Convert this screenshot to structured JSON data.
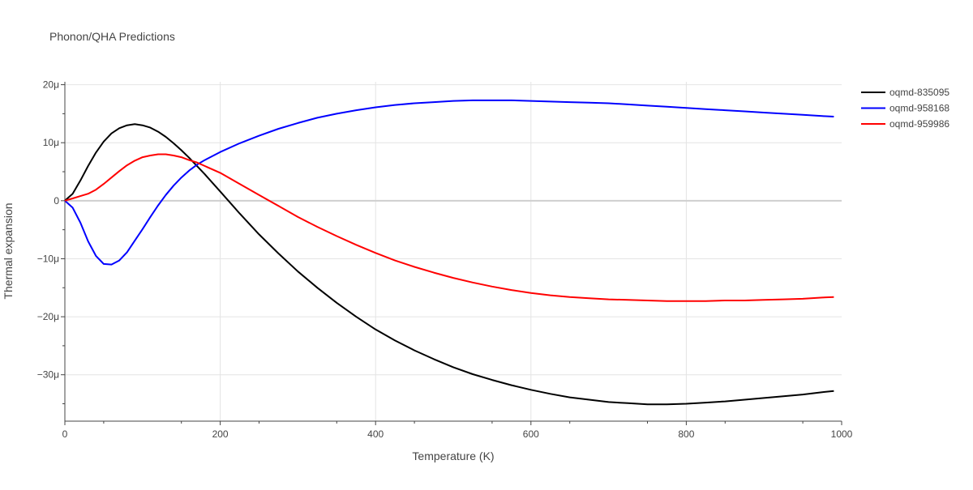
{
  "chart_data": {
    "type": "line",
    "title": "Phonon/QHA Predictions",
    "xlabel": "Temperature (K)",
    "ylabel": "Thermal expansion",
    "xlim": [
      0,
      1000
    ],
    "ylim": [
      -38,
      20.5
    ],
    "x_ticks": [
      0,
      200,
      400,
      600,
      800,
      1000
    ],
    "x_tick_labels": [
      "0",
      "200",
      "400",
      "600",
      "800",
      "1000"
    ],
    "y_ticks": [
      -30,
      -20,
      -10,
      0,
      10,
      20
    ],
    "y_tick_labels": [
      "−30μ",
      "−20μ",
      "−10μ",
      "0",
      "10μ",
      "20μ"
    ],
    "y_unit_note": "values in units of 1e-6 (μ)",
    "grid": true,
    "legend_position": "top-right",
    "series": [
      {
        "name": "oqmd-835095",
        "color": "#000000",
        "x": [
          0,
          10,
          20,
          30,
          40,
          50,
          60,
          70,
          80,
          90,
          100,
          110,
          120,
          130,
          140,
          150,
          160,
          170,
          180,
          200,
          225,
          250,
          275,
          300,
          325,
          350,
          375,
          400,
          425,
          450,
          475,
          500,
          525,
          550,
          575,
          600,
          625,
          650,
          675,
          700,
          725,
          750,
          775,
          800,
          825,
          850,
          875,
          900,
          925,
          950,
          975,
          990
        ],
        "y": [
          0,
          1.2,
          3.5,
          6,
          8.3,
          10.2,
          11.6,
          12.5,
          13.0,
          13.2,
          13.0,
          12.6,
          11.9,
          11.0,
          9.9,
          8.7,
          7.4,
          6.0,
          4.6,
          1.6,
          -2.2,
          -5.8,
          -9.1,
          -12.2,
          -15.0,
          -17.6,
          -20.0,
          -22.2,
          -24.1,
          -25.8,
          -27.3,
          -28.7,
          -29.9,
          -30.9,
          -31.8,
          -32.6,
          -33.3,
          -33.9,
          -34.3,
          -34.7,
          -34.9,
          -35.1,
          -35.1,
          -35.0,
          -34.8,
          -34.6,
          -34.3,
          -34.0,
          -33.7,
          -33.4,
          -33.0,
          -32.8
        ]
      },
      {
        "name": "oqmd-958168",
        "color": "#0000ff",
        "x": [
          0,
          10,
          20,
          30,
          40,
          50,
          60,
          70,
          80,
          90,
          100,
          110,
          120,
          130,
          140,
          150,
          160,
          170,
          180,
          200,
          225,
          250,
          275,
          300,
          325,
          350,
          375,
          400,
          425,
          450,
          475,
          500,
          525,
          550,
          575,
          600,
          625,
          650,
          675,
          700,
          725,
          750,
          775,
          800,
          825,
          850,
          875,
          900,
          925,
          950,
          975,
          990
        ],
        "y": [
          0,
          -1.2,
          -3.8,
          -7.0,
          -9.5,
          -10.9,
          -11.0,
          -10.3,
          -8.9,
          -6.9,
          -4.9,
          -2.8,
          -0.8,
          1.0,
          2.6,
          4.0,
          5.2,
          6.2,
          7.0,
          8.4,
          9.9,
          11.2,
          12.4,
          13.4,
          14.3,
          15.0,
          15.6,
          16.1,
          16.5,
          16.8,
          17.0,
          17.2,
          17.3,
          17.3,
          17.3,
          17.2,
          17.1,
          17.0,
          16.9,
          16.8,
          16.6,
          16.4,
          16.2,
          16.0,
          15.8,
          15.6,
          15.4,
          15.2,
          15.0,
          14.8,
          14.6,
          14.5
        ]
      },
      {
        "name": "oqmd-959986",
        "color": "#ff0000",
        "x": [
          0,
          10,
          20,
          30,
          40,
          50,
          60,
          70,
          80,
          90,
          100,
          110,
          120,
          130,
          140,
          150,
          160,
          170,
          180,
          200,
          225,
          250,
          275,
          300,
          325,
          350,
          375,
          400,
          425,
          450,
          475,
          500,
          525,
          550,
          575,
          600,
          625,
          650,
          675,
          700,
          725,
          750,
          775,
          800,
          825,
          850,
          875,
          900,
          925,
          950,
          975,
          990
        ],
        "y": [
          0,
          0.4,
          0.8,
          1.2,
          1.9,
          2.9,
          4.0,
          5.1,
          6.1,
          6.9,
          7.5,
          7.8,
          8.0,
          8.0,
          7.8,
          7.5,
          7.0,
          6.6,
          6.0,
          4.8,
          2.9,
          1.0,
          -0.9,
          -2.8,
          -4.5,
          -6.1,
          -7.6,
          -9.0,
          -10.3,
          -11.4,
          -12.4,
          -13.3,
          -14.1,
          -14.8,
          -15.4,
          -15.9,
          -16.3,
          -16.6,
          -16.8,
          -17.0,
          -17.1,
          -17.2,
          -17.3,
          -17.3,
          -17.3,
          -17.2,
          -17.2,
          -17.1,
          -17.0,
          -16.9,
          -16.7,
          -16.6
        ]
      }
    ]
  }
}
